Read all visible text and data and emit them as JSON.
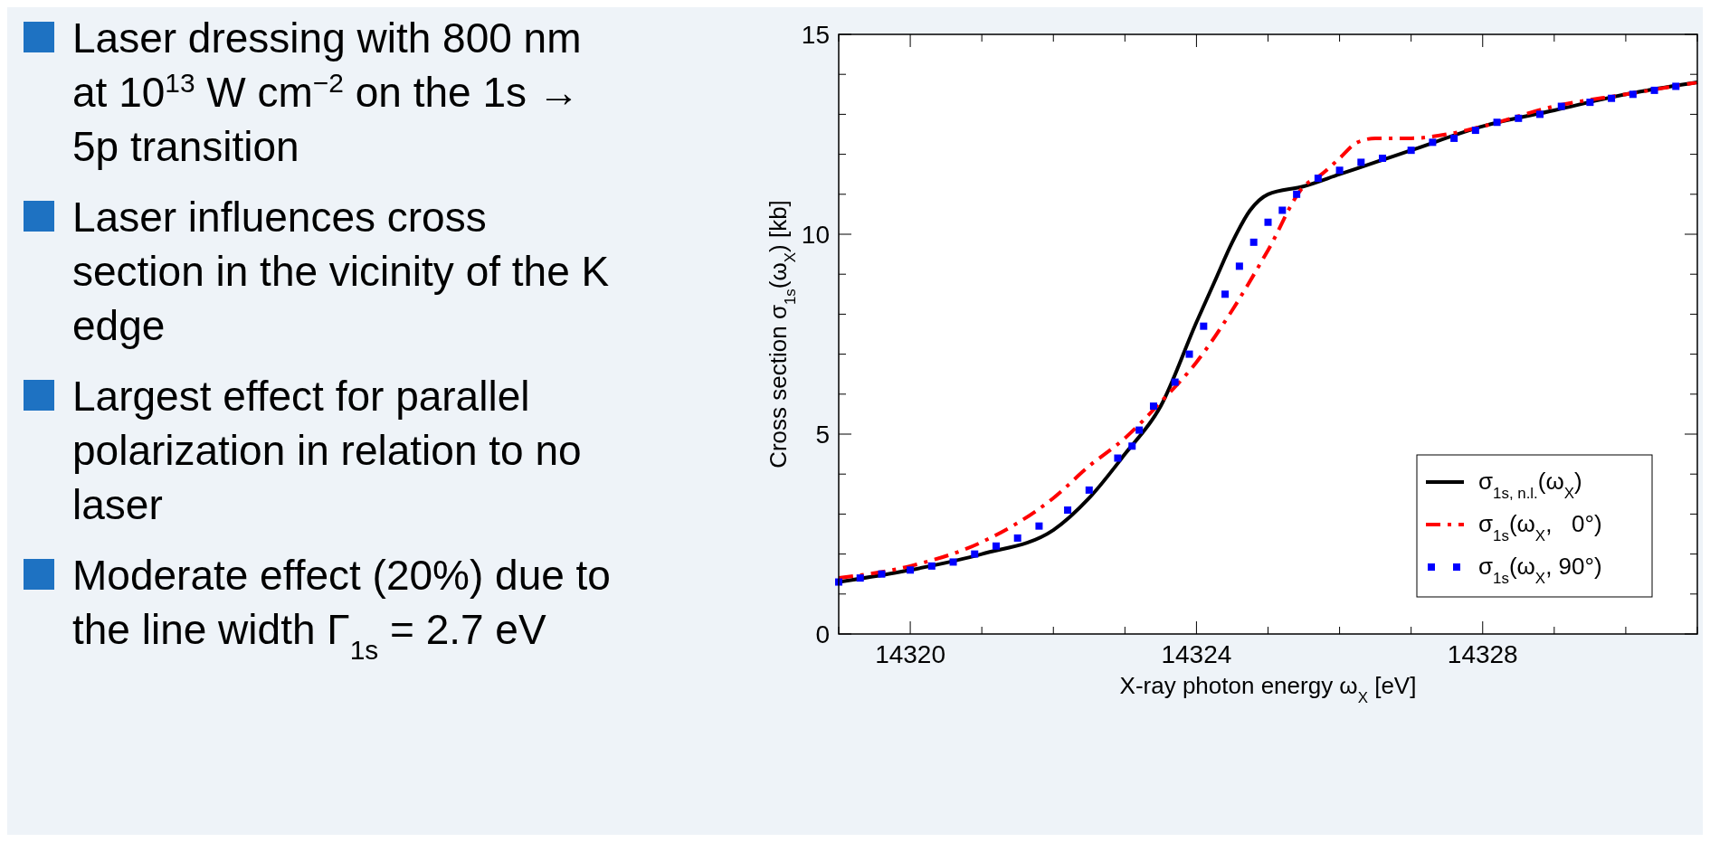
{
  "chart_data": [
    {
      "type": "other",
      "annotations": [
        "Laser dressing with 800 nm at 10$^{13}$ W cm$^{−2}$ on the 1s → 5p transition",
        "Laser influences cross section in the vicinity of the K edge",
        "Largest effect for parallel polarization in relation to no laser",
        "Moderate effect (20%) due to the line width Γ$_{1s}$ = 2.7 eV"
      ]
    },
    {
      "type": "line",
      "xlabel": "X-ray photon energy ω$_{X}$ [eV]",
      "ylabel": "Cross section σ$_{1s}$(ω$_{X}$) [kb]",
      "xlim": [
        14319,
        14331
      ],
      "xticks": [
        {
          "value": 14319,
          "label": null
        },
        14320,
        {
          "value": 14321,
          "label": null
        },
        {
          "value": 14322,
          "label": null
        },
        {
          "value": 14323,
          "label": null
        },
        14324,
        {
          "value": 14325,
          "label": null
        },
        {
          "value": 14326,
          "label": null
        },
        {
          "value": 14327,
          "label": null
        },
        14328,
        {
          "value": 14329,
          "label": null
        },
        {
          "value": 14330,
          "label": null
        },
        {
          "value": 14331,
          "label": null
        }
      ],
      "ylim": [
        0,
        15
      ],
      "yticks": [
        0,
        {
          "value": 1,
          "label": null
        },
        {
          "value": 2,
          "label": null
        },
        {
          "value": 3,
          "label": null
        },
        {
          "value": 4,
          "label": null
        },
        5,
        {
          "value": 6,
          "label": null
        },
        {
          "value": 7,
          "label": null
        },
        {
          "value": 8,
          "label": null
        },
        {
          "value": 9,
          "label": null
        },
        10,
        {
          "value": 11,
          "label": null
        },
        {
          "value": 12,
          "label": null
        },
        {
          "value": 13,
          "label": null
        },
        {
          "value": 14,
          "label": null
        },
        15
      ],
      "grid": false,
      "legend": "bottom right",
      "series": [
        {
          "name": "σ$_{1s, n.l.}$(ω$_{X}$)",
          "color": "#000000",
          "line_style": "solid",
          "x": [
            14319,
            14320,
            14321,
            14322,
            14322.5,
            14323,
            14323.5,
            14324,
            14324.25,
            14324.5,
            14324.75,
            14325,
            14325.5,
            14326,
            14326.5,
            14327,
            14328,
            14329,
            14330,
            14331
          ],
          "values": [
            1.3,
            1.6,
            2.0,
            2.6,
            3.4,
            4.5,
            5.7,
            7.8,
            8.8,
            9.8,
            10.6,
            11.0,
            11.2,
            11.5,
            11.8,
            12.1,
            12.7,
            13.1,
            13.5,
            13.8
          ]
        },
        {
          "name": "σ$_{1s}$(ω$_{X}$,   0°)",
          "color": "#ff0000",
          "line_style": "dashed",
          "x": [
            14319,
            14320,
            14321,
            14322,
            14322.5,
            14323,
            14323.5,
            14324,
            14324.5,
            14325,
            14325.5,
            14325.75,
            14326,
            14326.25,
            14326.5,
            14327,
            14327.5,
            14328,
            14329,
            14330,
            14331
          ],
          "values": [
            1.4,
            1.7,
            2.3,
            3.4,
            4.2,
            4.9,
            5.8,
            6.8,
            8.1,
            9.6,
            11.2,
            11.5,
            11.9,
            12.3,
            12.4,
            12.4,
            12.5,
            12.7,
            13.2,
            13.5,
            13.8
          ]
        },
        {
          "name": "σ$_{1s}$(ω$_{X}$, 90°)",
          "color": "#0000ff",
          "type": "scatter",
          "marker": "square",
          "x": [
            14319.0,
            14319.3,
            14319.6,
            14320.0,
            14320.3,
            14320.6,
            14320.9,
            14321.2,
            14321.5,
            14321.8,
            14322.2,
            14322.5,
            14322.9,
            14323.1,
            14323.2,
            14323.4,
            14323.7,
            14323.9,
            14324.1,
            14324.4,
            14324.6,
            14324.8,
            14325.0,
            14325.2,
            14325.4,
            14325.7,
            14326.0,
            14326.3,
            14326.6,
            14327.0,
            14327.3,
            14327.6,
            14327.9,
            14328.2,
            14328.5,
            14328.8,
            14329.1,
            14329.5,
            14329.8,
            14330.1,
            14330.4,
            14330.7
          ],
          "values": [
            1.3,
            1.4,
            1.5,
            1.6,
            1.7,
            1.8,
            2.0,
            2.2,
            2.4,
            2.7,
            3.1,
            3.6,
            4.4,
            4.7,
            5.1,
            5.7,
            6.3,
            7.0,
            7.7,
            8.5,
            9.2,
            9.8,
            10.3,
            10.6,
            11.0,
            11.4,
            11.6,
            11.8,
            11.9,
            12.1,
            12.3,
            12.4,
            12.6,
            12.8,
            12.9,
            13.0,
            13.2,
            13.3,
            13.4,
            13.5,
            13.6,
            13.7
          ]
        }
      ]
    }
  ]
}
